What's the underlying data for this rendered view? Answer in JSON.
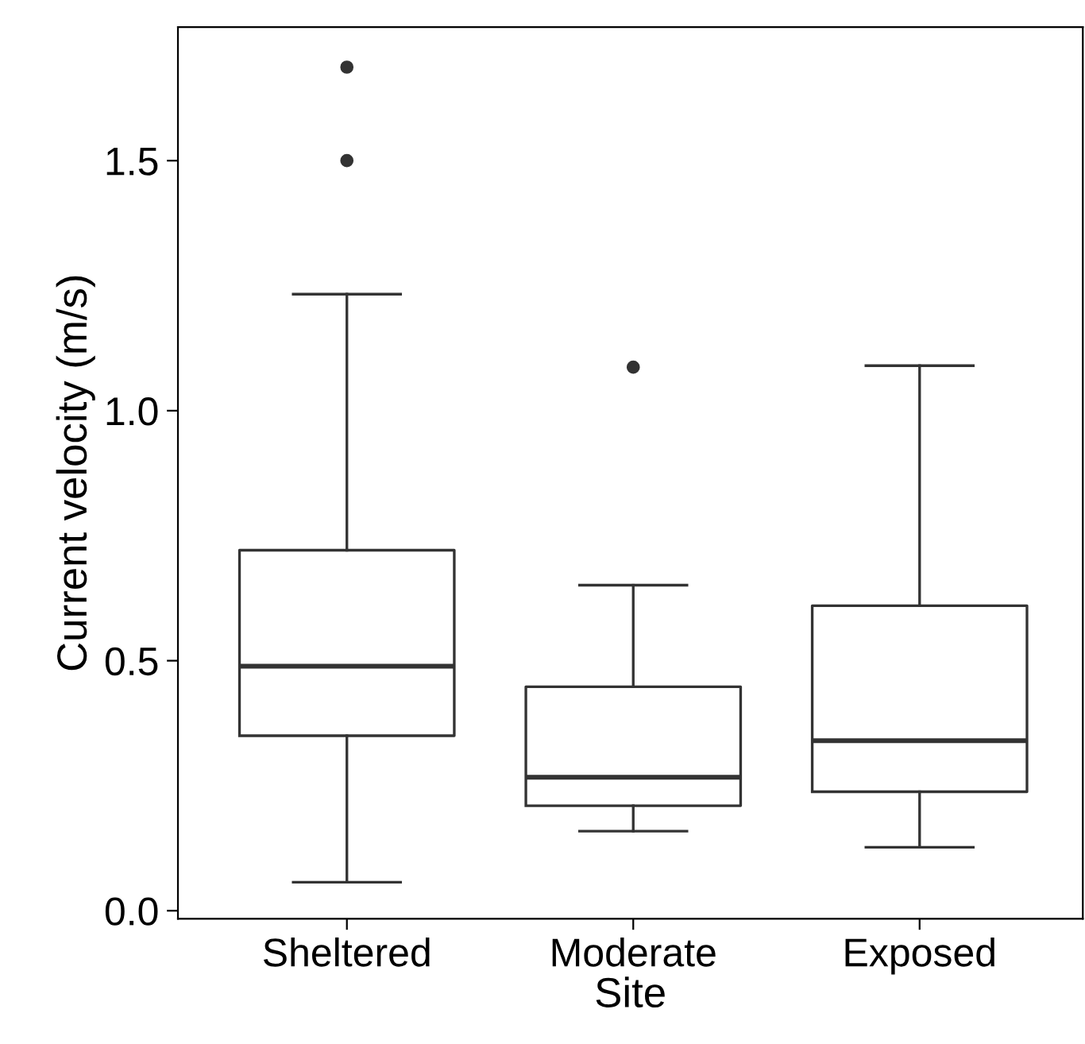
{
  "chart_data": {
    "type": "box",
    "xlabel": "Site",
    "ylabel": "Current velocity (m/s)",
    "categories": [
      "Sheltered",
      "Moderate",
      "Exposed"
    ],
    "boxes": [
      {
        "low": 0.057,
        "q1": 0.35,
        "median": 0.489,
        "q3": 0.721,
        "high": 1.233,
        "outliers": [
          1.5,
          1.687
        ]
      },
      {
        "low": 0.159,
        "q1": 0.21,
        "median": 0.267,
        "q3": 0.448,
        "high": 0.651,
        "outliers": [
          1.087
        ]
      },
      {
        "low": 0.127,
        "q1": 0.238,
        "median": 0.34,
        "q3": 0.61,
        "high": 1.09
      }
    ],
    "color": "#333333",
    "ylim": [
      -0.016,
      1.767
    ],
    "yticks": [
      {
        "value": 0,
        "label": "0.0"
      },
      0.5,
      {
        "value": 1,
        "label": "1.0"
      },
      1.5
    ],
    "grid": false,
    "legend": false
  }
}
